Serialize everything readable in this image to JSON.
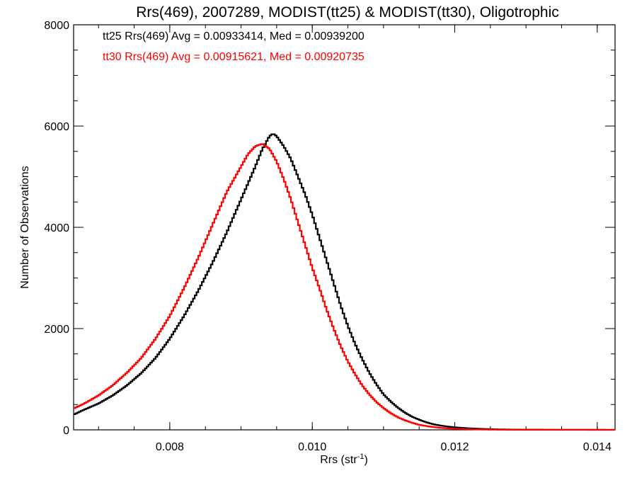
{
  "chart_data": {
    "type": "line",
    "title": "Rrs(469), 2007289, MODIST(tt25) & MODIST(tt30), Oligotrophic",
    "xlabel_main": "Rrs (str",
    "xlabel_exp": "-1",
    "xlabel_close": ")",
    "ylabel": "Number of Observations",
    "xlim": [
      0.00665,
      0.01425
    ],
    "ylim": [
      0,
      8000
    ],
    "x_ticks": [
      "0.008",
      "0.010",
      "0.012",
      "0.014"
    ],
    "y_ticks": [
      "0",
      "2000",
      "4000",
      "6000",
      "8000"
    ],
    "grid": false,
    "legend_position": "top-left",
    "series": [
      {
        "name": "tt25 Rrs(469) Avg = 0.00933414, Med = 0.00939200",
        "color": "#000000",
        "points": [
          [
            0.00665,
            300
          ],
          [
            0.0068,
            400
          ],
          [
            0.007,
            520
          ],
          [
            0.0072,
            680
          ],
          [
            0.0074,
            880
          ],
          [
            0.0076,
            1120
          ],
          [
            0.0078,
            1420
          ],
          [
            0.008,
            1800
          ],
          [
            0.0082,
            2250
          ],
          [
            0.0084,
            2750
          ],
          [
            0.0086,
            3300
          ],
          [
            0.0088,
            3900
          ],
          [
            0.009,
            4550
          ],
          [
            0.0092,
            5200
          ],
          [
            0.0093,
            5550
          ],
          [
            0.0094,
            5800
          ],
          [
            0.00945,
            5850
          ],
          [
            0.0095,
            5800
          ],
          [
            0.0096,
            5600
          ],
          [
            0.0097,
            5350
          ],
          [
            0.0098,
            5000
          ],
          [
            0.0099,
            4650
          ],
          [
            0.01,
            4250
          ],
          [
            0.0101,
            3800
          ],
          [
            0.0102,
            3350
          ],
          [
            0.0103,
            2900
          ],
          [
            0.0104,
            2450
          ],
          [
            0.0105,
            2050
          ],
          [
            0.0106,
            1700
          ],
          [
            0.0107,
            1400
          ],
          [
            0.0108,
            1130
          ],
          [
            0.0109,
            900
          ],
          [
            0.011,
            700
          ],
          [
            0.0111,
            560
          ],
          [
            0.0112,
            440
          ],
          [
            0.0113,
            340
          ],
          [
            0.0114,
            260
          ],
          [
            0.0115,
            200
          ],
          [
            0.0116,
            150
          ],
          [
            0.0117,
            110
          ],
          [
            0.0118,
            85
          ],
          [
            0.0119,
            65
          ],
          [
            0.012,
            50
          ],
          [
            0.0122,
            30
          ],
          [
            0.0124,
            18
          ],
          [
            0.0126,
            10
          ],
          [
            0.0128,
            6
          ],
          [
            0.013,
            4
          ],
          [
            0.0135,
            2
          ],
          [
            0.01425,
            1
          ]
        ]
      },
      {
        "name": "tt30 Rrs(469) Avg = 0.00915621, Med = 0.00920735",
        "color": "#ff0000",
        "points": [
          [
            0.00665,
            420
          ],
          [
            0.0068,
            520
          ],
          [
            0.007,
            680
          ],
          [
            0.0072,
            880
          ],
          [
            0.0074,
            1130
          ],
          [
            0.0076,
            1420
          ],
          [
            0.0078,
            1800
          ],
          [
            0.008,
            2250
          ],
          [
            0.0082,
            2800
          ],
          [
            0.0084,
            3400
          ],
          [
            0.0086,
            4050
          ],
          [
            0.0088,
            4700
          ],
          [
            0.009,
            5200
          ],
          [
            0.0091,
            5450
          ],
          [
            0.0092,
            5600
          ],
          [
            0.0093,
            5650
          ],
          [
            0.0094,
            5550
          ],
          [
            0.0095,
            5300
          ],
          [
            0.0096,
            4950
          ],
          [
            0.0097,
            4550
          ],
          [
            0.0098,
            4100
          ],
          [
            0.0099,
            3650
          ],
          [
            0.01,
            3200
          ],
          [
            0.0101,
            2800
          ],
          [
            0.0102,
            2380
          ],
          [
            0.0103,
            2000
          ],
          [
            0.0104,
            1650
          ],
          [
            0.0105,
            1350
          ],
          [
            0.0106,
            1100
          ],
          [
            0.0107,
            880
          ],
          [
            0.0108,
            700
          ],
          [
            0.0109,
            550
          ],
          [
            0.011,
            430
          ],
          [
            0.0111,
            330
          ],
          [
            0.0112,
            250
          ],
          [
            0.0113,
            190
          ],
          [
            0.0114,
            140
          ],
          [
            0.0115,
            100
          ],
          [
            0.0116,
            75
          ],
          [
            0.0117,
            55
          ],
          [
            0.0118,
            40
          ],
          [
            0.0119,
            30
          ],
          [
            0.012,
            22
          ],
          [
            0.0122,
            12
          ],
          [
            0.0124,
            7
          ],
          [
            0.0126,
            4
          ],
          [
            0.0128,
            3
          ],
          [
            0.013,
            2
          ],
          [
            0.0135,
            1
          ],
          [
            0.01425,
            0
          ]
        ]
      }
    ]
  }
}
